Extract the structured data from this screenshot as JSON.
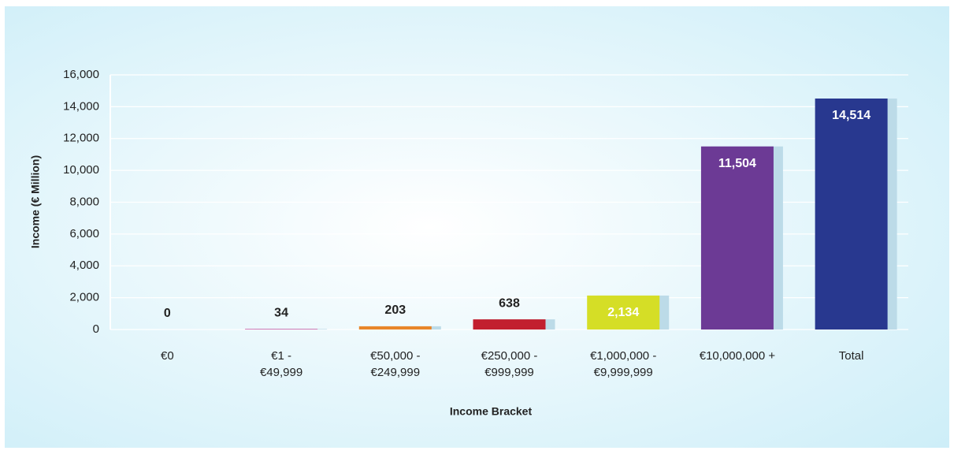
{
  "chart_data": {
    "type": "bar",
    "x_label": "Income Bracket",
    "y_label": "Income (€ Million)",
    "categories": [
      [
        "€0"
      ],
      [
        "€1 -",
        "€49,999"
      ],
      [
        "€50,000 -",
        "€249,999"
      ],
      [
        "€250,000 -",
        "€999,999"
      ],
      [
        "€1,000,000 -",
        "€9,999,999"
      ],
      [
        "€10,000,000 +"
      ],
      [
        "Total"
      ]
    ],
    "values": [
      0,
      34,
      203,
      638,
      2134,
      11504,
      14514
    ],
    "value_labels": [
      "0",
      "34",
      "203",
      "638",
      "2,134",
      "11,504",
      "14,514"
    ],
    "colors": [
      "#9a9a9a",
      "#c2449a",
      "#e8862a",
      "#c21f2f",
      "#d5de26",
      "#6c3a95",
      "#28388f"
    ],
    "ylim": [
      0,
      16000
    ],
    "yticks": [
      0,
      {
        "value": 2000,
        "label": "2,000"
      },
      {
        "value": 4000,
        "label": "4,000"
      },
      {
        "value": 6000,
        "label": "6,000"
      },
      {
        "value": 8000,
        "label": "8,000"
      },
      {
        "value": 10000,
        "label": "10,000"
      },
      {
        "value": 12000,
        "label": "12,000"
      },
      {
        "value": 14000,
        "label": "14,000"
      },
      {
        "value": 16000,
        "label": "16,000"
      }
    ],
    "grid": true
  }
}
